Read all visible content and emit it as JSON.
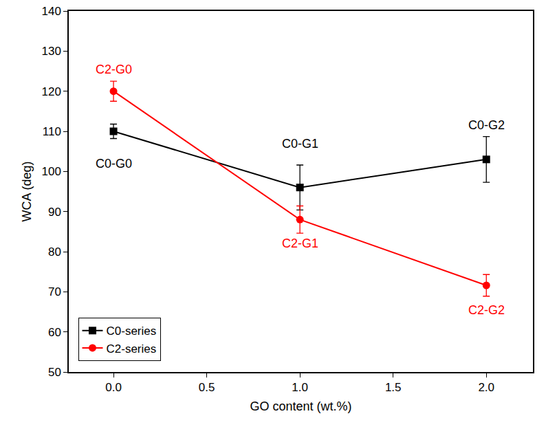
{
  "chart_data": {
    "type": "line",
    "x_label": "GO content (wt.%)",
    "y_label": "WCA (deg)",
    "x": [
      0,
      1,
      2
    ],
    "series": [
      {
        "name": "C0-series",
        "color": "#000000",
        "marker": "square",
        "line_style": "solid",
        "values": [
          110,
          96,
          103
        ],
        "errors": [
          1.8,
          5.6,
          5.7
        ]
      },
      {
        "name": "C2-series",
        "color": "#ff0000",
        "marker": "circle",
        "line_style": "solid",
        "values": [
          120,
          88,
          71.6
        ],
        "errors": [
          2.5,
          3.4,
          2.7
        ]
      }
    ],
    "xlim": [
      -0.24,
      2.25
    ],
    "xticks": [
      {
        "value": 0,
        "label": "0.0"
      },
      {
        "value": 0.5,
        "label": "0.5"
      },
      {
        "value": 1,
        "label": "1.0"
      },
      {
        "value": 1.5,
        "label": "1.5"
      },
      {
        "value": 2,
        "label": "2.0"
      }
    ],
    "ylim": [
      50,
      140
    ],
    "yticks": [
      50,
      60,
      70,
      80,
      90,
      100,
      110,
      120,
      130,
      140
    ],
    "grid": false,
    "legend": "lower left",
    "annotations": [
      {
        "text": "C2-G0",
        "x": 0,
        "y": 125.5,
        "color": "#ff0000"
      },
      {
        "text": "C0-G0",
        "x": 0,
        "y": 102,
        "color": "#000000"
      },
      {
        "text": "C0-G1",
        "x": 1,
        "y": 107,
        "color": "#000000"
      },
      {
        "text": "C2-G1",
        "x": 1,
        "y": 82,
        "color": "#ff0000"
      },
      {
        "text": "C0-G2",
        "x": 2,
        "y": 111.5,
        "color": "#000000"
      },
      {
        "text": "C2-G2",
        "x": 2,
        "y": 65.5,
        "color": "#ff0000"
      }
    ]
  }
}
